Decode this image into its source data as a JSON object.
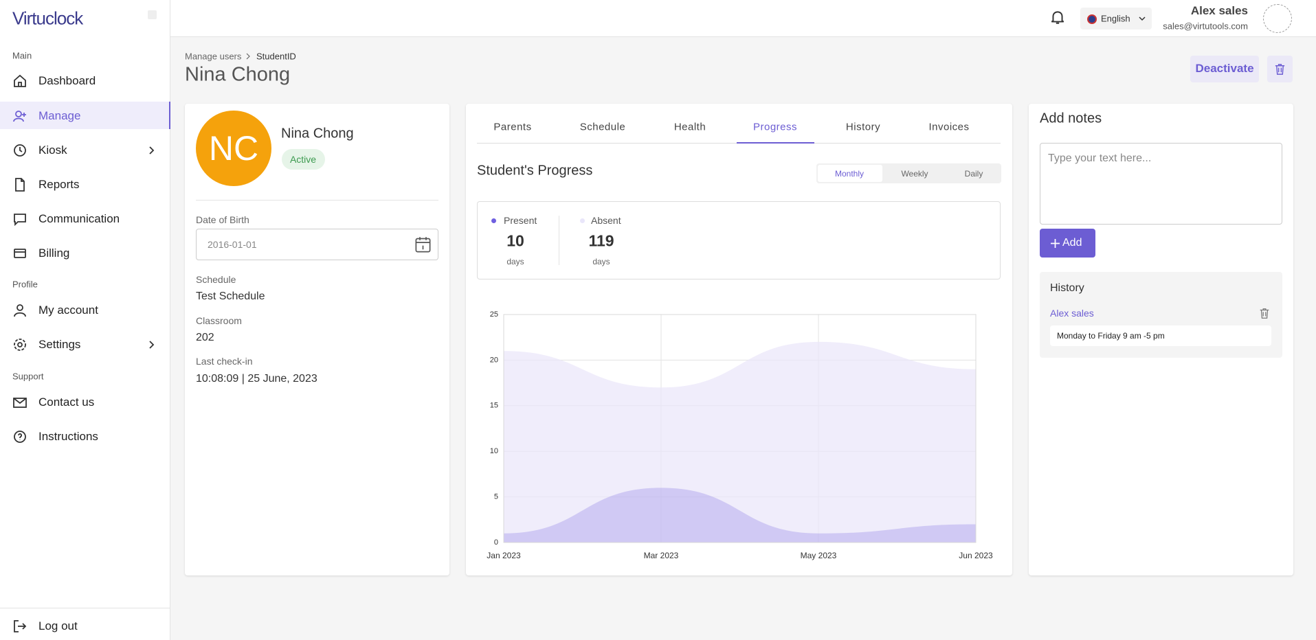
{
  "app": {
    "logo": "Virtuclock"
  },
  "sidebar": {
    "groups": [
      {
        "label": "Main",
        "items": [
          "Dashboard",
          "Manage",
          "Kiosk",
          "Reports",
          "Communication",
          "Billing"
        ]
      },
      {
        "label": "Profile",
        "items": [
          "My account",
          "Settings"
        ]
      },
      {
        "label": "Support",
        "items": [
          "Contact us",
          "Instructions"
        ]
      }
    ],
    "logout": "Log out"
  },
  "header": {
    "language": "English",
    "user_name": "Alex sales",
    "user_email": "sales@virtutools.com"
  },
  "breadcrumb": [
    "Manage users",
    "StudentID"
  ],
  "actions": {
    "deactivate": "Deactivate"
  },
  "student": {
    "name": "Nina Chong",
    "initials": "NC",
    "status": "Active",
    "fields": [
      {
        "label": "Date of Birth",
        "value": "2016-01-01"
      },
      {
        "label": "Schedule",
        "value": "Test Schedule"
      },
      {
        "label": "Classroom",
        "value": "202"
      },
      {
        "label": "Last check-in",
        "value": "10:08:09 | 25 June, 2023"
      }
    ]
  },
  "tabs": [
    "Parents",
    "Schedule",
    "Health",
    "Progress",
    "History",
    "Invoices"
  ],
  "progress": {
    "title": "Student's Progress",
    "periods": [
      "Monthly",
      "Weekly",
      "Daily"
    ],
    "stats": [
      {
        "value": 10,
        "unit": "days"
      },
      {
        "value": 119,
        "unit": "days"
      }
    ],
    "chart": {
      "type": "area",
      "x": [
        "Jan 2023",
        "Mar 2023",
        "May 2023",
        "Jun 2023"
      ],
      "series": [
        {
          "name": "Present",
          "color": "#6f5fe0",
          "values": [
            1,
            6,
            1,
            2
          ]
        },
        {
          "name": "Absent",
          "color": "#e9e6fa",
          "values": [
            21,
            17,
            22,
            19
          ]
        }
      ],
      "ylim": [
        0,
        25
      ],
      "yticks": [
        0,
        5,
        10,
        15,
        20,
        25
      ],
      "grid": true
    }
  },
  "notes": {
    "title": "Add notes",
    "placeholder": "Type your text here...",
    "add_button": "Add",
    "history_title": "History",
    "history": [
      {
        "author": "Alex sales",
        "text": "Monday to Friday 9 am -5 pm"
      }
    ]
  }
}
